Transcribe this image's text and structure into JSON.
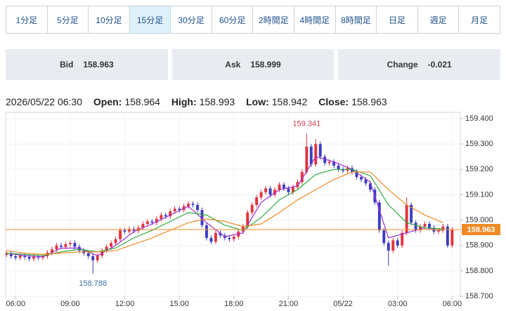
{
  "tabs": [
    "1分足",
    "5分足",
    "10分足",
    "15分足",
    "30分足",
    "60分足",
    "2時間足",
    "4時間足",
    "8時間足",
    "日足",
    "週足",
    "月足"
  ],
  "active_tab": 3,
  "quote": {
    "bid_label": "Bid",
    "bid": 158.963,
    "ask_label": "Ask",
    "ask": 158.999,
    "change_label": "Change",
    "change": -0.021
  },
  "ohlc_header": {
    "datetime": "2026/05/22 06:30",
    "open_label": "Open:",
    "open": 158.964,
    "high_label": "High:",
    "high": 158.993,
    "low_label": "Low:",
    "low": 158.942,
    "close_label": "Close:",
    "close": 158.963
  },
  "chart_data": {
    "type": "candlestick",
    "up_color": "#e3323f",
    "down_color": "#3b3bc4",
    "open": [
      158.864,
      158.87,
      158.858,
      158.852,
      158.86,
      158.855,
      158.848,
      158.856,
      158.852,
      158.858,
      158.872,
      158.885,
      158.9,
      158.895,
      158.905,
      158.91,
      158.895,
      158.88,
      158.87,
      158.858,
      158.842,
      158.86,
      158.88,
      158.895,
      158.91,
      158.925,
      158.96,
      158.955,
      158.965,
      158.958,
      158.97,
      158.985,
      158.995,
      158.99,
      159.005,
      159.02,
      159.015,
      159.035,
      159.045,
      159.04,
      159.055,
      159.065,
      159.06,
      159.04,
      158.98,
      158.93,
      158.915,
      158.95,
      158.94,
      158.93,
      158.925,
      158.935,
      158.955,
      158.975,
      159.03,
      159.06,
      159.09,
      159.11,
      159.125,
      159.1,
      159.12,
      159.14,
      159.125,
      159.11,
      159.13,
      159.15,
      159.19,
      159.29,
      159.22,
      159.3,
      159.25,
      159.225,
      159.23,
      159.215,
      159.2,
      159.195,
      159.205,
      159.19,
      159.17,
      159.16,
      159.145,
      159.12,
      159.07,
      158.96,
      158.91,
      158.88,
      158.92,
      158.9,
      158.95,
      159.06,
      158.99,
      158.96,
      158.975,
      158.985,
      158.97,
      158.955,
      158.96,
      158.975,
      158.9
    ],
    "high": [
      158.88,
      158.88,
      158.868,
      158.87,
      158.87,
      158.865,
      158.866,
      158.866,
      158.868,
      158.882,
      158.895,
      158.91,
      158.91,
      158.915,
      158.92,
      158.92,
      158.905,
      158.89,
      158.88,
      158.868,
      158.87,
      158.89,
      158.905,
      158.92,
      158.935,
      158.97,
      158.97,
      158.975,
      158.975,
      158.98,
      158.995,
      159.005,
      159.005,
      159.015,
      159.03,
      159.03,
      159.045,
      159.055,
      159.055,
      159.065,
      159.075,
      159.075,
      159.07,
      159.05,
      158.99,
      158.94,
      158.96,
      158.96,
      158.95,
      158.94,
      158.945,
      158.965,
      158.985,
      159.04,
      159.07,
      159.1,
      159.12,
      159.135,
      159.135,
      159.13,
      159.15,
      159.15,
      159.135,
      159.14,
      159.16,
      159.2,
      159.341,
      159.3,
      159.32,
      159.31,
      159.26,
      159.24,
      159.24,
      159.225,
      159.21,
      159.215,
      159.215,
      159.2,
      159.18,
      159.17,
      159.155,
      159.13,
      159.08,
      158.97,
      158.92,
      158.93,
      158.93,
      158.96,
      159.09,
      159.07,
      159.0,
      158.985,
      158.995,
      158.995,
      158.98,
      158.97,
      158.985,
      158.985,
      158.973
    ],
    "low": [
      158.854,
      158.848,
      158.842,
      158.842,
      158.845,
      158.838,
      158.838,
      158.842,
      158.842,
      158.848,
      158.862,
      158.875,
      158.885,
      158.885,
      158.895,
      158.885,
      158.87,
      158.86,
      158.848,
      158.788,
      158.832,
      158.85,
      158.87,
      158.885,
      158.9,
      158.915,
      158.945,
      158.945,
      158.948,
      158.948,
      158.96,
      158.975,
      158.98,
      158.98,
      158.995,
      159.005,
      159.005,
      159.025,
      159.03,
      159.03,
      159.045,
      159.05,
      159.03,
      158.97,
      158.92,
      158.905,
      158.905,
      158.93,
      158.92,
      158.915,
      158.915,
      158.925,
      158.945,
      158.965,
      159.02,
      159.05,
      159.08,
      159.1,
      159.09,
      159.09,
      159.11,
      159.115,
      159.1,
      159.1,
      159.12,
      159.14,
      159.18,
      159.21,
      159.21,
      159.24,
      159.215,
      159.215,
      159.205,
      159.19,
      159.185,
      159.185,
      159.18,
      159.16,
      159.15,
      159.135,
      159.11,
      159.06,
      158.95,
      158.9,
      158.82,
      158.87,
      158.89,
      158.89,
      158.94,
      158.98,
      158.95,
      158.95,
      158.965,
      158.96,
      158.945,
      158.945,
      158.95,
      158.89,
      158.89
    ],
    "close": [
      158.87,
      158.858,
      158.852,
      158.86,
      158.855,
      158.848,
      158.856,
      158.852,
      158.858,
      158.872,
      158.885,
      158.9,
      158.895,
      158.905,
      158.91,
      158.895,
      158.88,
      158.87,
      158.858,
      158.842,
      158.86,
      158.88,
      158.895,
      158.91,
      158.925,
      158.96,
      158.955,
      158.965,
      158.958,
      158.97,
      158.985,
      158.995,
      158.99,
      159.005,
      159.02,
      159.015,
      159.035,
      159.045,
      159.04,
      159.055,
      159.065,
      159.06,
      159.04,
      158.98,
      158.93,
      158.915,
      158.95,
      158.94,
      158.93,
      158.925,
      158.935,
      158.955,
      158.975,
      159.03,
      159.06,
      159.09,
      159.11,
      159.125,
      159.1,
      159.12,
      159.14,
      159.125,
      159.11,
      159.13,
      159.15,
      159.19,
      159.29,
      159.22,
      159.3,
      159.25,
      159.225,
      159.23,
      159.215,
      159.2,
      159.195,
      159.205,
      159.19,
      159.17,
      159.16,
      159.145,
      159.12,
      159.07,
      158.96,
      158.91,
      158.88,
      158.92,
      158.9,
      158.95,
      159.06,
      158.99,
      158.96,
      158.975,
      158.985,
      158.97,
      158.955,
      158.96,
      158.975,
      158.9,
      158.963
    ],
    "moving_averages": [
      {
        "color": "#9b30d0",
        "x": [
          0,
          4,
          8,
          12,
          16,
          20,
          24,
          28,
          32,
          36,
          40,
          44,
          48,
          52,
          56,
          60,
          64,
          68,
          72,
          76,
          80,
          84,
          88,
          92,
          96
        ],
        "values": [
          158.87,
          158.86,
          158.855,
          158.89,
          158.89,
          158.86,
          158.9,
          158.955,
          158.985,
          159.02,
          159.055,
          158.99,
          158.935,
          158.95,
          159.07,
          159.12,
          159.135,
          159.25,
          159.23,
          159.2,
          159.15,
          158.93,
          158.95,
          158.97,
          158.96
        ]
      },
      {
        "color": "#2eaa3c",
        "x": [
          0,
          4,
          8,
          12,
          16,
          20,
          24,
          28,
          32,
          36,
          40,
          44,
          48,
          52,
          56,
          60,
          64,
          68,
          72,
          76,
          80,
          84,
          88,
          92,
          96
        ],
        "values": [
          158.87,
          158.865,
          158.86,
          158.875,
          158.885,
          158.875,
          158.89,
          158.93,
          158.96,
          158.995,
          159.03,
          159.02,
          158.98,
          158.96,
          159.01,
          159.08,
          159.12,
          159.18,
          159.2,
          159.2,
          159.175,
          159.06,
          158.99,
          158.97,
          158.965
        ]
      },
      {
        "color": "#f08a24",
        "x": [
          0,
          4,
          8,
          12,
          16,
          20,
          24,
          28,
          32,
          36,
          40,
          44,
          48,
          52,
          56,
          60,
          64,
          68,
          72,
          76,
          80,
          84,
          88,
          92,
          96
        ],
        "values": [
          158.88,
          158.87,
          158.865,
          158.87,
          158.875,
          158.875,
          158.88,
          158.905,
          158.93,
          158.96,
          158.99,
          159.005,
          158.995,
          158.975,
          158.985,
          159.03,
          159.08,
          159.12,
          159.16,
          159.19,
          159.19,
          159.12,
          159.06,
          159.02,
          158.99
        ]
      }
    ],
    "last_price": 158.963,
    "last_price_color": "#f08a24",
    "annotations": [
      {
        "x": 66,
        "value": 159.341,
        "color": "#d2384e",
        "side": "top"
      },
      {
        "x": 19,
        "value": 158.788,
        "color": "#3a6c9e",
        "side": "bottom"
      }
    ],
    "xlim": [
      -0.2,
      99.8
    ],
    "xticks": [
      {
        "value": 2,
        "label": "06:00"
      },
      {
        "value": 14,
        "label": "09:00"
      },
      {
        "value": 26,
        "label": "12:00"
      },
      {
        "value": 38,
        "label": "15:00"
      },
      {
        "value": 50,
        "label": "18:00"
      },
      {
        "value": 62,
        "label": "21:00"
      },
      {
        "value": 74,
        "label": "05/22"
      },
      {
        "value": 86,
        "label": "03:00"
      },
      {
        "value": 98,
        "label": "06:00"
      }
    ],
    "ylim": [
      158.7,
      159.425
    ],
    "yticks": [
      {
        "value": 158.7,
        "label": "158.700"
      },
      {
        "value": 158.8,
        "label": "158.800"
      },
      {
        "value": 158.9,
        "label": "158.900"
      },
      {
        "value": 159.0,
        "label": "159.000"
      },
      {
        "value": 159.1,
        "label": "159.100"
      },
      {
        "value": 159.2,
        "label": "159.200"
      },
      {
        "value": 159.3,
        "label": "159.300"
      },
      {
        "value": 159.4,
        "label": "159.400"
      }
    ],
    "grid": true
  }
}
